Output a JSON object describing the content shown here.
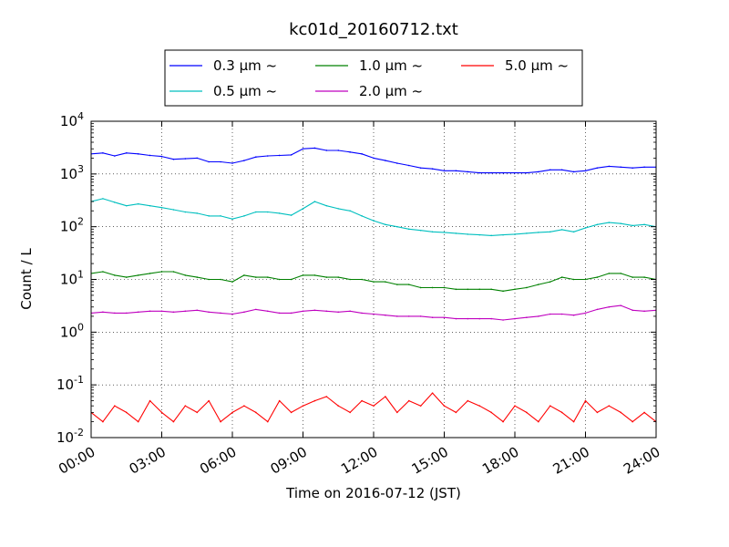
{
  "chart_data": {
    "type": "line",
    "title": "kc01d_20160712.txt",
    "xlabel": "Time on 2016-07-12 (JST)",
    "ylabel": "Count / L",
    "y_scale": "log",
    "ylim": [
      0.01,
      10000
    ],
    "xlim": [
      "00:00",
      "24:00"
    ],
    "grid": true,
    "legend_position": "top-center",
    "x_ticks": [
      "00:00",
      "03:00",
      "06:00",
      "09:00",
      "12:00",
      "15:00",
      "18:00",
      "21:00",
      "24:00"
    ],
    "y_ticks": [
      {
        "base": "10",
        "exp": "-2"
      },
      {
        "base": "10",
        "exp": "-1"
      },
      {
        "base": "10",
        "exp": "0"
      },
      {
        "base": "10",
        "exp": "1"
      },
      {
        "base": "10",
        "exp": "2"
      },
      {
        "base": "10",
        "exp": "3"
      },
      {
        "base": "10",
        "exp": "4"
      }
    ],
    "x_hours": [
      0,
      0.5,
      1,
      1.5,
      2,
      2.5,
      3,
      3.5,
      4,
      4.5,
      5,
      5.5,
      6,
      6.5,
      7,
      7.5,
      8,
      8.5,
      9,
      9.5,
      10,
      10.5,
      11,
      11.5,
      12,
      12.5,
      13,
      13.5,
      14,
      14.5,
      15,
      15.5,
      16,
      16.5,
      17,
      17.5,
      18,
      18.5,
      19,
      19.5,
      20,
      20.5,
      21,
      21.5,
      22,
      22.5,
      23,
      23.5,
      24
    ],
    "series": [
      {
        "name": "0.3 μm ~",
        "color": "#0000ff",
        "values": [
          2400,
          2500,
          2200,
          2500,
          2400,
          2250,
          2150,
          1900,
          1950,
          2000,
          1700,
          1700,
          1600,
          1800,
          2100,
          2200,
          2250,
          2300,
          3000,
          3100,
          2800,
          2800,
          2600,
          2400,
          2000,
          1800,
          1600,
          1450,
          1300,
          1250,
          1150,
          1150,
          1100,
          1050,
          1050,
          1050,
          1050,
          1050,
          1100,
          1200,
          1200,
          1100,
          1150,
          1300,
          1400,
          1350,
          1300,
          1350,
          1350
        ]
      },
      {
        "name": "0.5 μm ~",
        "color": "#00bfbf",
        "values": [
          300,
          340,
          290,
          250,
          270,
          250,
          230,
          210,
          190,
          180,
          160,
          160,
          140,
          160,
          190,
          190,
          180,
          165,
          220,
          300,
          250,
          220,
          200,
          160,
          130,
          110,
          100,
          90,
          85,
          80,
          78,
          75,
          72,
          70,
          68,
          70,
          72,
          75,
          78,
          80,
          88,
          80,
          95,
          110,
          120,
          115,
          105,
          110,
          100
        ]
      },
      {
        "name": "1.0 μm ~",
        "color": "#008000",
        "values": [
          13,
          14,
          12,
          11,
          12,
          13,
          14,
          14,
          12,
          11,
          10,
          10,
          9,
          12,
          11,
          11,
          10,
          10,
          12,
          12,
          11,
          11,
          10,
          10,
          9,
          9,
          8,
          8,
          7,
          7,
          7,
          6.5,
          6.5,
          6.5,
          6.5,
          6,
          6.5,
          7,
          8,
          9,
          11,
          10,
          10,
          11,
          13,
          13,
          11,
          11,
          10
        ]
      },
      {
        "name": "2.0 μm ~",
        "color": "#bf00bf",
        "values": [
          2.3,
          2.4,
          2.3,
          2.3,
          2.4,
          2.5,
          2.5,
          2.4,
          2.5,
          2.6,
          2.4,
          2.3,
          2.2,
          2.4,
          2.7,
          2.5,
          2.3,
          2.3,
          2.5,
          2.6,
          2.5,
          2.4,
          2.5,
          2.3,
          2.2,
          2.1,
          2.0,
          2.0,
          2.0,
          1.9,
          1.9,
          1.8,
          1.8,
          1.8,
          1.8,
          1.7,
          1.8,
          1.9,
          2.0,
          2.2,
          2.2,
          2.1,
          2.3,
          2.7,
          3.0,
          3.2,
          2.6,
          2.5,
          2.6
        ]
      },
      {
        "name": "5.0 μm ~",
        "color": "#ff0000",
        "values": [
          0.03,
          0.02,
          0.04,
          0.03,
          0.02,
          0.05,
          0.03,
          0.02,
          0.04,
          0.03,
          0.05,
          0.02,
          0.03,
          0.04,
          0.03,
          0.02,
          0.05,
          0.03,
          0.04,
          0.05,
          0.06,
          0.04,
          0.03,
          0.05,
          0.04,
          0.06,
          0.03,
          0.05,
          0.04,
          0.07,
          0.04,
          0.03,
          0.05,
          0.04,
          0.03,
          0.02,
          0.04,
          0.03,
          0.02,
          0.04,
          0.03,
          0.02,
          0.05,
          0.03,
          0.04,
          0.03,
          0.02,
          0.03,
          0.02
        ]
      }
    ]
  }
}
